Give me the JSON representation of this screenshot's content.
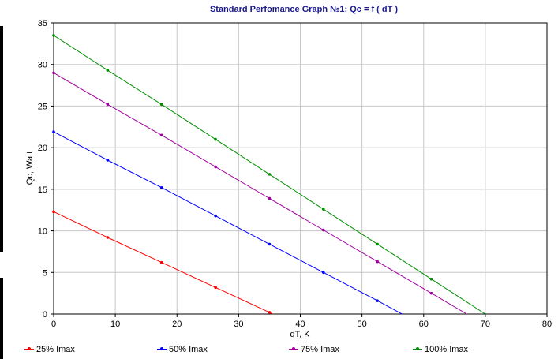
{
  "chart_data": {
    "type": "line",
    "title": "Standard Perfomance Graph №1: Qc = f ( dT )",
    "xlabel": "dT, K",
    "ylabel": "Qc, Watt",
    "xlim": [
      0,
      80
    ],
    "ylim": [
      0,
      35
    ],
    "xticks": [
      "0",
      "10",
      "20",
      "30",
      "40",
      "50",
      "60",
      "70",
      "80"
    ],
    "yticks": [
      "0",
      "5",
      "10",
      "15",
      "20",
      "25",
      "30",
      "35"
    ],
    "grid": true,
    "legend_position": "bottom",
    "series": [
      {
        "name": "25% Imax",
        "color": "#ff0000",
        "x": [
          0,
          8.75,
          17.5,
          26.25,
          35.0,
          35.5
        ],
        "y": [
          12.3,
          9.2,
          6.2,
          3.2,
          0.2,
          0
        ]
      },
      {
        "name": "50% Imax",
        "color": "#0000ff",
        "x": [
          0,
          8.75,
          17.5,
          26.25,
          35.0,
          43.75,
          52.5,
          56.5
        ],
        "y": [
          21.9,
          18.5,
          15.2,
          11.8,
          8.4,
          5.0,
          1.6,
          0
        ]
      },
      {
        "name": "75% Imax",
        "color": "#a000a0",
        "x": [
          0,
          8.75,
          17.5,
          26.25,
          35.0,
          43.75,
          52.5,
          61.25,
          67.0
        ],
        "y": [
          29.0,
          25.2,
          21.5,
          17.7,
          13.9,
          10.1,
          6.3,
          2.5,
          0
        ]
      },
      {
        "name": "100% Imax",
        "color": "#009000",
        "x": [
          0,
          8.75,
          17.5,
          26.25,
          35.0,
          43.75,
          52.5,
          61.25,
          70.0
        ],
        "y": [
          33.5,
          29.3,
          25.2,
          21.0,
          16.8,
          12.6,
          8.4,
          4.2,
          0
        ]
      }
    ]
  }
}
